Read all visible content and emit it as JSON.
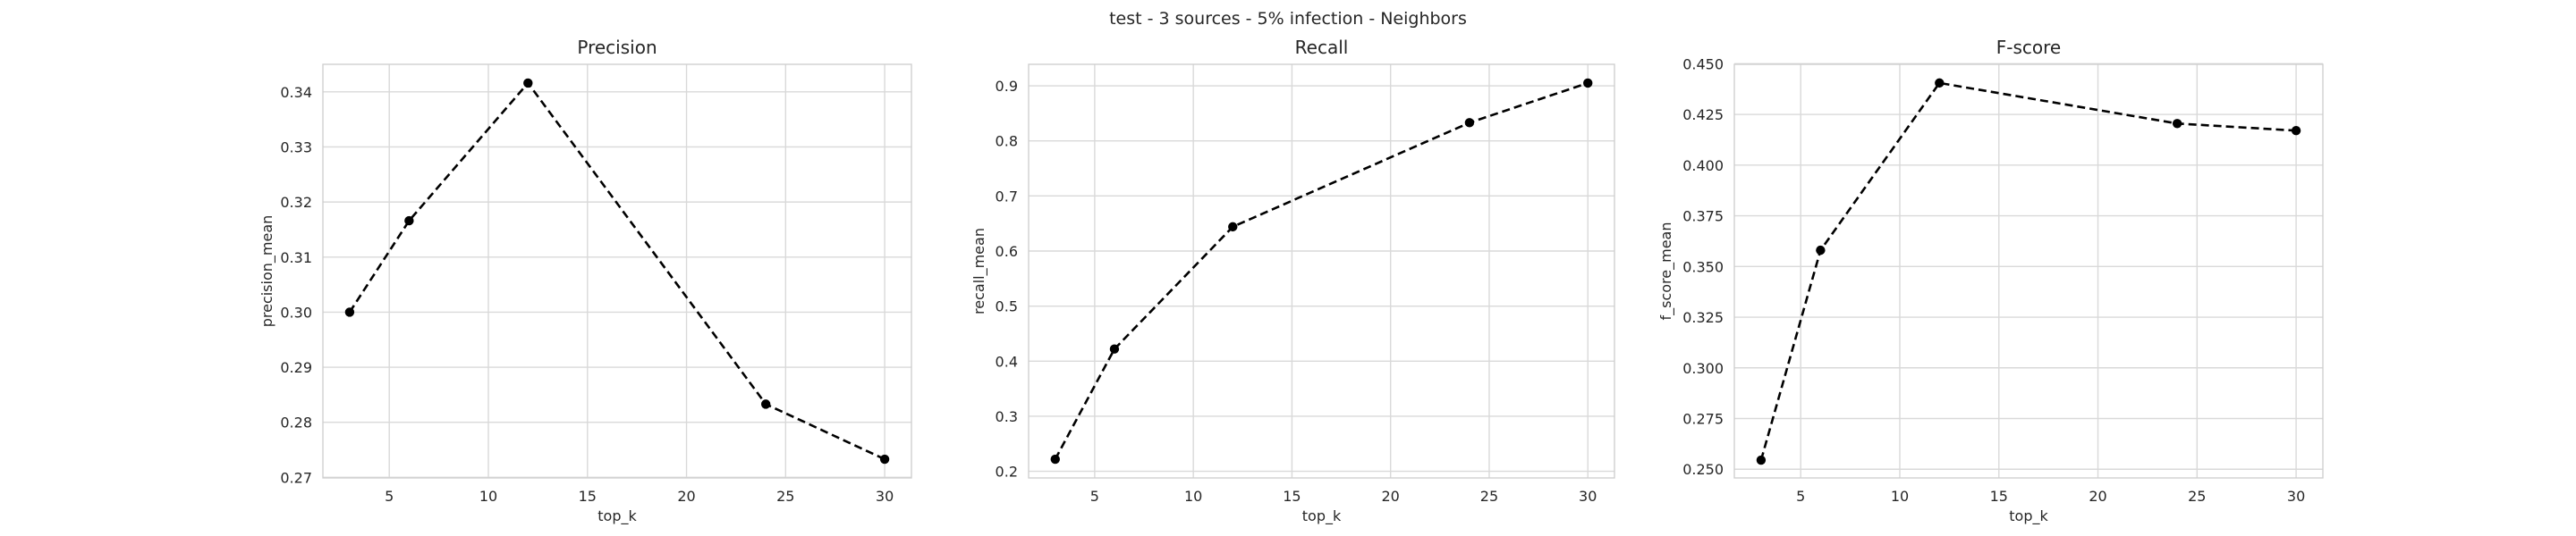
{
  "figure": {
    "title": "test - 3 sources - 5% infection - Neighbors"
  },
  "chart_data": [
    {
      "type": "line",
      "title": "Precision",
      "xlabel": "top_k",
      "ylabel": "precision_mean",
      "x": [
        3,
        6,
        12,
        24,
        30
      ],
      "series": [
        {
          "values": [
            0.3,
            0.3166,
            0.3416,
            0.2833,
            0.2733
          ]
        }
      ],
      "xlim": [
        1.65,
        31.35
      ],
      "ylim": [
        0.2699,
        0.345
      ],
      "xticks": [
        5,
        10,
        15,
        20,
        25,
        30
      ],
      "yticks": [
        0.27,
        0.28,
        0.29,
        0.3,
        0.31,
        0.32,
        0.33,
        0.34
      ],
      "ytick_labels": [
        "0.27",
        "0.28",
        "0.29",
        "0.30",
        "0.31",
        "0.32",
        "0.33",
        "0.34"
      ],
      "line_style": "dashed",
      "marker": "circle",
      "line_color": "#000000",
      "grid": true
    },
    {
      "type": "line",
      "title": "Recall",
      "xlabel": "top_k",
      "ylabel": "recall_mean",
      "x": [
        3,
        6,
        12,
        24,
        30
      ],
      "series": [
        {
          "values": [
            0.222,
            0.422,
            0.644,
            0.833,
            0.905
          ]
        }
      ],
      "xlim": [
        1.65,
        31.35
      ],
      "ylim": [
        0.188,
        0.939
      ],
      "xticks": [
        5,
        10,
        15,
        20,
        25,
        30
      ],
      "yticks": [
        0.2,
        0.3,
        0.4,
        0.5,
        0.6,
        0.7,
        0.8,
        0.9
      ],
      "ytick_labels": [
        "0.2",
        "0.3",
        "0.4",
        "0.5",
        "0.6",
        "0.7",
        "0.8",
        "0.9"
      ],
      "line_style": "dashed",
      "marker": "circle",
      "line_color": "#000000",
      "grid": true
    },
    {
      "type": "line",
      "title": "F-score",
      "xlabel": "top_k",
      "ylabel": "f_score_mean",
      "x": [
        3,
        6,
        12,
        24,
        30
      ],
      "series": [
        {
          "values": [
            0.2545,
            0.358,
            0.4405,
            0.4205,
            0.417
          ]
        }
      ],
      "xlim": [
        1.65,
        31.35
      ],
      "ylim": [
        0.2457,
        0.4497
      ],
      "xticks": [
        5,
        10,
        15,
        20,
        25,
        30
      ],
      "yticks": [
        0.25,
        0.275,
        0.3,
        0.325,
        0.35,
        0.375,
        0.4,
        0.425,
        0.45
      ],
      "ytick_labels": [
        "0.250",
        "0.275",
        "0.300",
        "0.325",
        "0.350",
        "0.375",
        "0.400",
        "0.425",
        "0.450"
      ],
      "line_style": "dashed",
      "marker": "circle",
      "line_color": "#000000",
      "grid": true
    }
  ]
}
